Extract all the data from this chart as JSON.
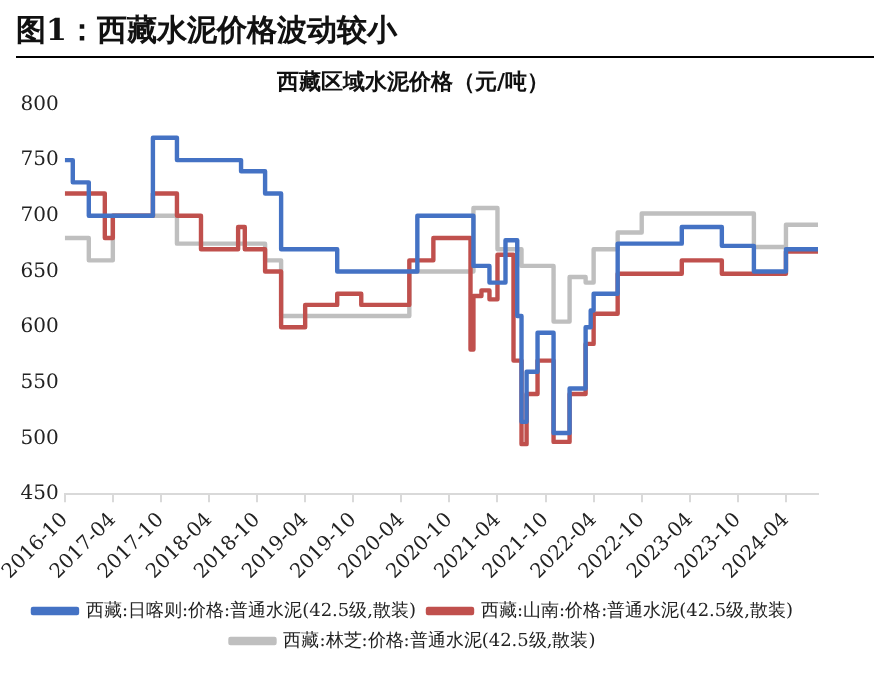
{
  "chart_data": {
    "type": "step",
    "title": "西藏区域水泥价格（元/吨）",
    "annotations": [
      "图1：西藏水泥价格波动较小"
    ],
    "xlim": [
      "2016-10",
      "2024-08"
    ],
    "xticks": [
      {
        "value": "2016-10",
        "label": "2016-10"
      },
      {
        "value": "2017-04",
        "label": "2017-04"
      },
      {
        "value": "2017-10",
        "label": "2017-10"
      },
      {
        "value": "2018-04",
        "label": "2018-04"
      },
      {
        "value": "2018-10",
        "label": "2018-10"
      },
      {
        "value": "2019-04",
        "label": "2019-04"
      },
      {
        "value": "2019-10",
        "label": "2019-10"
      },
      {
        "value": "2020-04",
        "label": "2020-04"
      },
      {
        "value": "2020-10",
        "label": "2020-10"
      },
      {
        "value": "2021-04",
        "label": "2021-04"
      },
      {
        "value": "2021-10",
        "label": "2021-10"
      },
      {
        "value": "2022-04",
        "label": "2022-04"
      },
      {
        "value": "2022-10",
        "label": "2022-10"
      },
      {
        "value": "2023-04",
        "label": "2023-04"
      },
      {
        "value": "2023-10",
        "label": "2023-10"
      },
      {
        "value": "2024-04",
        "label": "2024-04"
      }
    ],
    "ylim": [
      450,
      800
    ],
    "yticks": [
      450,
      500,
      550,
      600,
      650,
      700,
      750,
      800
    ],
    "grid": false,
    "legend": "bottom",
    "marker": "none",
    "line_style": "solid",
    "series": [
      {
        "name": "西藏:日喀则:价格:普通水泥(42.5级,散装)",
        "color": "#4472c4",
        "x": [
          "2016-10",
          "2016-11",
          "2017-01",
          "2017-09",
          "2017-12",
          "2018-08",
          "2018-11",
          "2019-01",
          "2019-08",
          "2020-06",
          "2021-01",
          "2021-03",
          "2021-05",
          "2021-06-15",
          "2021-07",
          "2021-07-20",
          "2021-09",
          "2021-11",
          "2022-01",
          "2022-03",
          "2022-03-20",
          "2022-04",
          "2022-07",
          "2023-03",
          "2023-08",
          "2023-12",
          "2024-04",
          "2024-08"
        ],
        "values": [
          750,
          730,
          700,
          770,
          750,
          740,
          720,
          670,
          650,
          700,
          655,
          640,
          678,
          610,
          515,
          560,
          595,
          505,
          545,
          600,
          615,
          630,
          675,
          690,
          673,
          650,
          670,
          670
        ]
      },
      {
        "name": "西藏:山南:价格:普通水泥(42.5级,散装)",
        "color": "#c0504d",
        "x": [
          "2016-10",
          "2017-03",
          "2017-04",
          "2017-09",
          "2017-12",
          "2018-03",
          "2018-07-20",
          "2018-08-15",
          "2018-11",
          "2019-01",
          "2019-04",
          "2019-08",
          "2019-11",
          "2020-05",
          "2020-08",
          "2020-12-20",
          "2021-01",
          "2021-02",
          "2021-03",
          "2021-04",
          "2021-06",
          "2021-07",
          "2021-07-20",
          "2021-09",
          "2021-11",
          "2022-01",
          "2022-03",
          "2022-04",
          "2022-07",
          "2023-03",
          "2023-08",
          "2024-04",
          "2024-08"
        ],
        "values": [
          720,
          680,
          700,
          720,
          700,
          670,
          690,
          670,
          650,
          600,
          620,
          630,
          620,
          660,
          680,
          580,
          628,
          633,
          625,
          665,
          570,
          495,
          540,
          570,
          497,
          540,
          585,
          612,
          648,
          660,
          648,
          668,
          668
        ]
      },
      {
        "name": "西藏:林芝:价格:普通水泥(42.5级,散装)",
        "color": "#bfbfbf",
        "x": [
          "2016-10",
          "2017-01",
          "2017-04",
          "2017-12",
          "2018-11",
          "2019-01",
          "2020-05",
          "2021-01",
          "2021-04",
          "2021-07",
          "2021-11",
          "2022-01",
          "2022-03",
          "2022-04",
          "2022-07",
          "2022-10",
          "2023-12",
          "2024-04",
          "2024-08"
        ],
        "values": [
          680,
          660,
          700,
          675,
          660,
          610,
          650,
          707,
          670,
          655,
          605,
          645,
          640,
          670,
          685,
          702,
          672,
          692,
          692
        ]
      }
    ]
  }
}
